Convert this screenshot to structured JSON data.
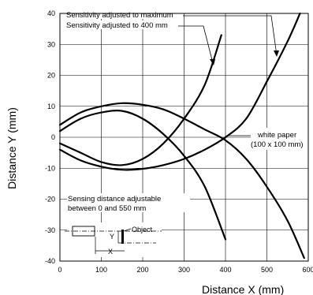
{
  "chart_data": {
    "type": "line",
    "xlabel": "Distance X (mm)",
    "ylabel": "Distance Y (mm)",
    "xlim": [
      0,
      600
    ],
    "ylim": [
      -40,
      40
    ],
    "x_ticks": [
      0,
      100,
      200,
      300,
      400,
      500,
      600
    ],
    "y_ticks": [
      40,
      30,
      20,
      10,
      0,
      -10,
      -20,
      -30,
      -40
    ],
    "grid": true,
    "series": [
      {
        "name": "Sensitivity adjusted to 400 mm",
        "points_upper": [
          [
            0,
            2
          ],
          [
            50,
            6
          ],
          [
            100,
            8
          ],
          [
            150,
            8.5
          ],
          [
            200,
            6
          ],
          [
            250,
            1
          ],
          [
            300,
            -6
          ],
          [
            350,
            -16
          ],
          [
            400,
            -33
          ]
        ],
        "points_lower": [
          [
            0,
            -2
          ],
          [
            50,
            -5
          ],
          [
            100,
            -8
          ],
          [
            150,
            -9
          ],
          [
            200,
            -7
          ],
          [
            250,
            -2
          ],
          [
            300,
            6
          ],
          [
            350,
            17
          ],
          [
            390,
            33
          ]
        ]
      },
      {
        "name": "Sensitivity adjusted to maximum",
        "points_upper": [
          [
            0,
            4
          ],
          [
            50,
            8
          ],
          [
            100,
            10
          ],
          [
            150,
            11
          ],
          [
            200,
            10.5
          ],
          [
            250,
            9
          ],
          [
            300,
            6
          ],
          [
            350,
            2.5
          ],
          [
            400,
            -1
          ],
          [
            450,
            -7
          ],
          [
            500,
            -16
          ],
          [
            550,
            -27
          ],
          [
            590,
            -39
          ]
        ],
        "points_lower": [
          [
            0,
            -4
          ],
          [
            50,
            -7.5
          ],
          [
            100,
            -9.5
          ],
          [
            150,
            -10.5
          ],
          [
            200,
            -10.2
          ],
          [
            250,
            -9
          ],
          [
            300,
            -7
          ],
          [
            350,
            -4
          ],
          [
            400,
            0
          ],
          [
            450,
            6
          ],
          [
            500,
            18
          ],
          [
            550,
            31
          ],
          [
            580,
            40
          ]
        ]
      }
    ],
    "annotations": {
      "label_max": "Sensitivity adjusted to maximum",
      "label_400": "Sensitivity adjusted to 400 mm",
      "white_paper_1": "white paper",
      "white_paper_2": "(100 x 100 mm)",
      "sensing_1": "Sensing distance adjustable",
      "sensing_2": "between  0 and 550 mm",
      "object": "Object",
      "y_marker": "Y",
      "x_marker": "X"
    }
  }
}
